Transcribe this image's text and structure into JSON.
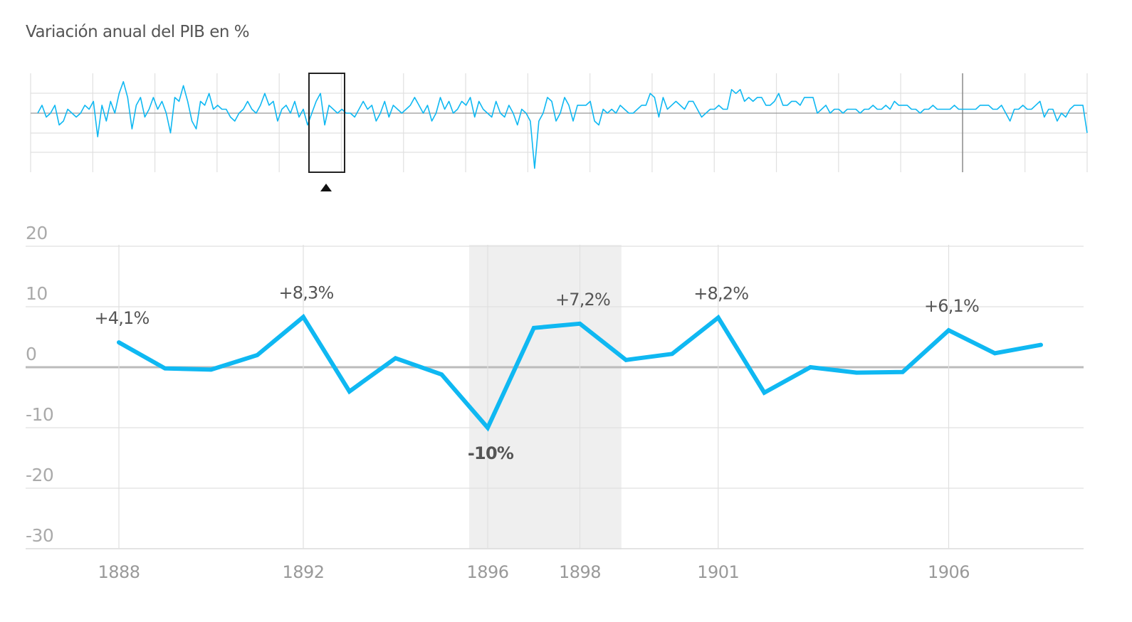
{
  "chart_data": {
    "type": "line",
    "title": "Variación anual del PIB en %",
    "overview": {
      "selection_window": "1888–1908",
      "values": [
        0,
        2,
        -1,
        0,
        2,
        -3,
        -2,
        1,
        0,
        -1,
        0,
        2,
        1,
        3,
        -6,
        2,
        -2,
        3,
        0,
        5,
        8,
        4,
        -4,
        2,
        4,
        -1,
        1,
        4,
        1,
        3,
        0,
        -5,
        4,
        3,
        7,
        3,
        -2,
        -4,
        3,
        2,
        5,
        1,
        2,
        1,
        1,
        -1,
        -2,
        0,
        1,
        3,
        1,
        0,
        2,
        5,
        2,
        3,
        -2,
        1,
        2,
        0,
        3,
        -1,
        1,
        -3,
        0,
        3,
        5,
        -3,
        2,
        1,
        0,
        1,
        0,
        0,
        -1,
        1,
        3,
        1,
        2,
        -2,
        0,
        3,
        -1,
        2,
        1,
        0,
        1,
        2,
        4,
        2,
        0,
        2,
        -2,
        0,
        4,
        1,
        3,
        0,
        1,
        3,
        2,
        4,
        -1,
        3,
        1,
        0,
        -1,
        3,
        0,
        -1,
        2,
        0,
        -3,
        1,
        0,
        -2,
        -14,
        -2,
        0,
        4,
        3,
        -2,
        0,
        4,
        2,
        -2,
        2,
        2,
        2,
        3,
        -2,
        -3,
        1,
        0,
        1,
        0,
        2,
        1,
        0,
        0,
        1,
        2,
        2,
        5,
        4,
        -1,
        4,
        1,
        2,
        3,
        2,
        1,
        3,
        3,
        1,
        -1,
        0,
        1,
        1,
        2,
        1,
        1,
        6,
        5,
        6,
        3,
        4,
        3,
        4,
        4,
        2,
        2,
        3,
        5,
        2,
        2,
        3,
        3,
        2,
        4,
        4,
        4,
        0,
        1,
        2,
        0,
        1,
        1,
        0,
        1,
        1,
        1,
        0,
        1,
        1,
        2,
        1,
        1,
        2,
        1,
        3,
        2,
        2,
        2,
        1,
        1,
        0,
        1,
        1,
        2,
        1,
        1,
        1,
        1,
        2,
        1,
        1,
        1,
        1,
        1,
        2,
        2,
        2,
        1,
        1,
        2,
        0,
        -2,
        1,
        1,
        2,
        1,
        1,
        2,
        3,
        -1,
        1,
        1,
        -2,
        0,
        -1,
        1,
        2,
        2,
        2,
        -5
      ],
      "ylim": [
        -15,
        10
      ]
    },
    "x_ticks": [
      "1888",
      "1892",
      "1896",
      "1898",
      "1901",
      "1906"
    ],
    "y_ticks": [
      "20",
      "10",
      "0",
      "-10",
      "-20",
      "-30"
    ],
    "ylim": [
      -30,
      20
    ],
    "xlim": [
      1886,
      1909
    ],
    "highlight_range": [
      1895.6,
      1898.9
    ],
    "series": [
      {
        "color": "#0fb8f2",
        "x": [
          1888,
          1889,
          1890,
          1891,
          1892,
          1893,
          1894,
          1895,
          1896,
          1897,
          1898,
          1899,
          1900,
          1901,
          1902,
          1903,
          1904,
          1905,
          1906,
          1907,
          1908
        ],
        "y": [
          4.1,
          -0.2,
          -0.4,
          2.0,
          8.3,
          -4.0,
          1.5,
          -1.2,
          -10.0,
          6.5,
          7.2,
          1.2,
          2.2,
          8.2,
          -4.2,
          0.0,
          -0.9,
          -0.8,
          6.1,
          2.3,
          3.7
        ]
      }
    ],
    "annotations": [
      {
        "x": 1888,
        "y": 4.1,
        "text": "+4,1%",
        "bold": false
      },
      {
        "x": 1892,
        "y": 8.3,
        "text": "+8,3%",
        "bold": false
      },
      {
        "x": 1896,
        "y": -10.0,
        "text": "-10%",
        "bold": true
      },
      {
        "x": 1898,
        "y": 7.2,
        "text": "+7,2%",
        "bold": false
      },
      {
        "x": 1901,
        "y": 8.2,
        "text": "+8,2%",
        "bold": false
      },
      {
        "x": 1906,
        "y": 6.1,
        "text": "+6,1%",
        "bold": false
      }
    ]
  }
}
